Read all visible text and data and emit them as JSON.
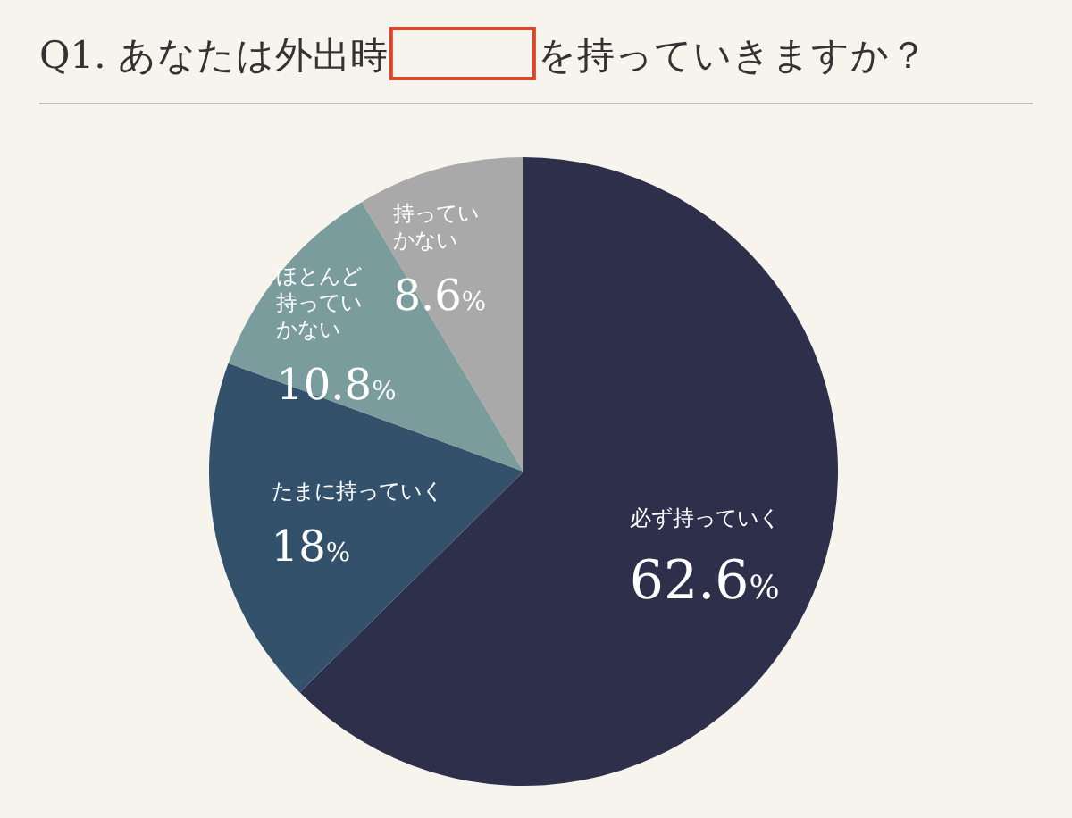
{
  "chart_data": {
    "type": "pie",
    "title": "Q1. あなたは外出時　　　　を持っていきますか？",
    "categories": [
      "必ず持っていく",
      "たまに持っていく",
      "ほとんど持っていかない",
      "持っていかない"
    ],
    "values": [
      62.6,
      18,
      10.8,
      8.6
    ],
    "value_labels": [
      "62.6%",
      "18%",
      "10.8%",
      "8.6%"
    ],
    "colors": [
      "#2e2f4b",
      "#34516b",
      "#7a9c9c",
      "#a9a9a9"
    ]
  }
}
